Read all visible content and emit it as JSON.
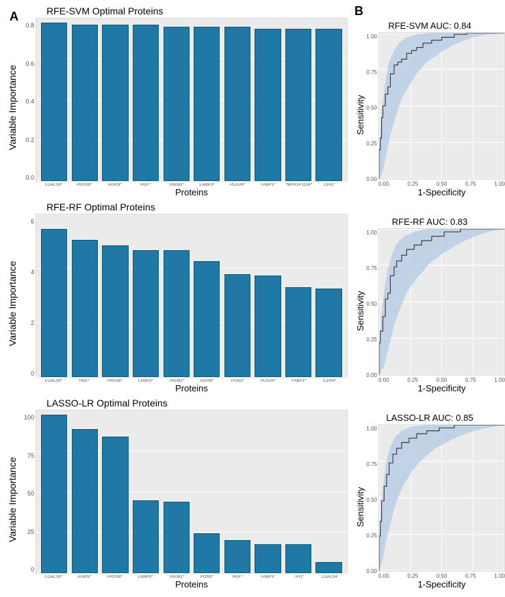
{
  "panel_labels": {
    "A": "A",
    "B": "B"
  },
  "colors": {
    "bar_fill": "#1f78a5",
    "bar_stroke": "#0e5a75",
    "plot_bg": "#ebebeb",
    "grid": "#ffffff",
    "roc_ci_fill": "#b3c9e6",
    "roc_ci_opacity": 0.75,
    "roc_line": "#333333",
    "text": "#000000"
  },
  "bar_charts": [
    {
      "title": "RFE-SVM Optimal Proteins",
      "ylabel": "Variable Importance",
      "xlabel": "Proteins",
      "ylim": [
        0,
        0.8
      ],
      "yticks": [
        "0.8",
        "0.6",
        "0.4",
        "0.2",
        "0.0"
      ],
      "bar_width_pct": 86,
      "categories": [
        "LGALS9*",
        "PRSS8*",
        "AGRN*",
        "HGF*",
        "TREM2*",
        "LAMP3*",
        "PLAUR*",
        "FABP1*",
        "*MFRSP113A*",
        "CHI1*"
      ],
      "values": [
        0.8,
        0.79,
        0.79,
        0.79,
        0.78,
        0.78,
        0.78,
        0.77,
        0.77,
        0.77
      ]
    },
    {
      "title": "RFE-RF Optimal Proteins",
      "ylabel": "Variable Importance",
      "xlabel": "Proteins",
      "ylim": [
        0,
        6
      ],
      "yticks": [
        "6",
        "4",
        "2",
        "0"
      ],
      "bar_width_pct": 86,
      "categories": [
        "LGALS9*",
        "HGF*",
        "PRSS8*",
        "LAMP3*",
        "TREM2*",
        "AGRN*",
        "PON3*",
        "PLAUR*",
        "FABP1*",
        "IL1RN*"
      ],
      "values": [
        5.6,
        5.2,
        5.0,
        4.8,
        4.8,
        4.4,
        3.9,
        3.85,
        3.4,
        3.35
      ]
    },
    {
      "title": "LASSO-LR Optimal Proteins",
      "ylabel": "Variable Importance",
      "xlabel": "Proteins",
      "ylim": [
        0,
        100
      ],
      "yticks": [
        "100",
        "75",
        "50",
        "25",
        "0"
      ],
      "bar_width_pct": 86,
      "categories": [
        "LGALS9*",
        "AGRN*",
        "PRSS8*",
        "LAMP3*",
        "TREM2*",
        "PON3*",
        "HGF*",
        "FABP1*",
        "TPI1*",
        "LGALS4"
      ],
      "values": [
        100,
        91,
        86,
        46,
        45,
        25,
        21,
        18,
        18,
        7
      ]
    }
  ],
  "roc_charts": [
    {
      "title": "RFE-SVM AUC: 0.84",
      "xlabel": "1-Specificity",
      "ylabel": "Sensitivity",
      "lim": [
        0,
        1
      ],
      "ticks": [
        "0.00",
        "0.25",
        "0.50",
        "0.75",
        "1.00"
      ],
      "line": [
        [
          0.0,
          0.0
        ],
        [
          0.01,
          0.2
        ],
        [
          0.02,
          0.28
        ],
        [
          0.03,
          0.42
        ],
        [
          0.05,
          0.5
        ],
        [
          0.07,
          0.58
        ],
        [
          0.09,
          0.63
        ],
        [
          0.12,
          0.72
        ],
        [
          0.15,
          0.78
        ],
        [
          0.18,
          0.8
        ],
        [
          0.22,
          0.82
        ],
        [
          0.26,
          0.86
        ],
        [
          0.3,
          0.88
        ],
        [
          0.35,
          0.9
        ],
        [
          0.42,
          0.93
        ],
        [
          0.5,
          0.95
        ],
        [
          0.6,
          0.97
        ],
        [
          0.7,
          0.99
        ],
        [
          0.8,
          1.0
        ],
        [
          1.0,
          1.0
        ]
      ],
      "ci_upper": [
        [
          0.0,
          0.2
        ],
        [
          0.02,
          0.45
        ],
        [
          0.04,
          0.6
        ],
        [
          0.06,
          0.72
        ],
        [
          0.08,
          0.8
        ],
        [
          0.12,
          0.88
        ],
        [
          0.16,
          0.93
        ],
        [
          0.22,
          0.97
        ],
        [
          0.3,
          0.99
        ],
        [
          0.4,
          1.0
        ],
        [
          0.5,
          1.0
        ],
        [
          1.0,
          1.0
        ]
      ],
      "ci_lower": [
        [
          0.0,
          0.0
        ],
        [
          0.03,
          0.05
        ],
        [
          0.06,
          0.18
        ],
        [
          0.09,
          0.3
        ],
        [
          0.13,
          0.42
        ],
        [
          0.18,
          0.55
        ],
        [
          0.24,
          0.64
        ],
        [
          0.3,
          0.72
        ],
        [
          0.38,
          0.8
        ],
        [
          0.48,
          0.86
        ],
        [
          0.6,
          0.92
        ],
        [
          0.75,
          0.97
        ],
        [
          0.88,
          0.99
        ],
        [
          1.0,
          1.0
        ]
      ]
    },
    {
      "title": "RFE-RF AUC: 0.83",
      "xlabel": "1-Specificity",
      "ylabel": "Sensitivity",
      "lim": [
        0,
        1
      ],
      "ticks": [
        "0.00",
        "0.25",
        "0.50",
        "0.75",
        "1.00"
      ],
      "line": [
        [
          0.0,
          0.0
        ],
        [
          0.01,
          0.22
        ],
        [
          0.03,
          0.3
        ],
        [
          0.05,
          0.4
        ],
        [
          0.07,
          0.52
        ],
        [
          0.09,
          0.56
        ],
        [
          0.12,
          0.68
        ],
        [
          0.14,
          0.74
        ],
        [
          0.18,
          0.78
        ],
        [
          0.22,
          0.82
        ],
        [
          0.28,
          0.86
        ],
        [
          0.34,
          0.89
        ],
        [
          0.42,
          0.92
        ],
        [
          0.52,
          0.95
        ],
        [
          0.65,
          0.98
        ],
        [
          0.8,
          1.0
        ],
        [
          1.0,
          1.0
        ]
      ],
      "ci_upper": [
        [
          0.0,
          0.18
        ],
        [
          0.02,
          0.42
        ],
        [
          0.04,
          0.58
        ],
        [
          0.07,
          0.72
        ],
        [
          0.1,
          0.82
        ],
        [
          0.14,
          0.9
        ],
        [
          0.2,
          0.95
        ],
        [
          0.28,
          0.98
        ],
        [
          0.38,
          1.0
        ],
        [
          0.5,
          1.0
        ],
        [
          1.0,
          1.0
        ]
      ],
      "ci_lower": [
        [
          0.0,
          0.0
        ],
        [
          0.04,
          0.06
        ],
        [
          0.08,
          0.2
        ],
        [
          0.12,
          0.34
        ],
        [
          0.17,
          0.46
        ],
        [
          0.23,
          0.58
        ],
        [
          0.3,
          0.66
        ],
        [
          0.4,
          0.76
        ],
        [
          0.52,
          0.84
        ],
        [
          0.66,
          0.91
        ],
        [
          0.8,
          0.96
        ],
        [
          0.92,
          0.99
        ],
        [
          1.0,
          1.0
        ]
      ]
    },
    {
      "title": "LASSO-LR AUC: 0.85",
      "xlabel": "1-Specificity",
      "ylabel": "Sensitivity",
      "lim": [
        0,
        1
      ],
      "ticks": [
        "0.00",
        "0.25",
        "0.50",
        "0.75",
        "1.00"
      ],
      "line": [
        [
          0.0,
          0.0
        ],
        [
          0.01,
          0.24
        ],
        [
          0.02,
          0.34
        ],
        [
          0.04,
          0.48
        ],
        [
          0.06,
          0.58
        ],
        [
          0.08,
          0.66
        ],
        [
          0.11,
          0.74
        ],
        [
          0.14,
          0.8
        ],
        [
          0.18,
          0.84
        ],
        [
          0.24,
          0.88
        ],
        [
          0.3,
          0.91
        ],
        [
          0.38,
          0.94
        ],
        [
          0.48,
          0.96
        ],
        [
          0.6,
          0.98
        ],
        [
          0.75,
          1.0
        ],
        [
          1.0,
          1.0
        ]
      ],
      "ci_upper": [
        [
          0.0,
          0.22
        ],
        [
          0.02,
          0.48
        ],
        [
          0.04,
          0.64
        ],
        [
          0.06,
          0.76
        ],
        [
          0.09,
          0.85
        ],
        [
          0.13,
          0.92
        ],
        [
          0.18,
          0.96
        ],
        [
          0.26,
          0.99
        ],
        [
          0.36,
          1.0
        ],
        [
          0.5,
          1.0
        ],
        [
          1.0,
          1.0
        ]
      ],
      "ci_lower": [
        [
          0.0,
          0.0
        ],
        [
          0.03,
          0.08
        ],
        [
          0.06,
          0.22
        ],
        [
          0.1,
          0.36
        ],
        [
          0.14,
          0.48
        ],
        [
          0.19,
          0.58
        ],
        [
          0.26,
          0.68
        ],
        [
          0.34,
          0.76
        ],
        [
          0.45,
          0.84
        ],
        [
          0.58,
          0.9
        ],
        [
          0.72,
          0.95
        ],
        [
          0.86,
          0.98
        ],
        [
          1.0,
          1.0
        ]
      ]
    }
  ]
}
